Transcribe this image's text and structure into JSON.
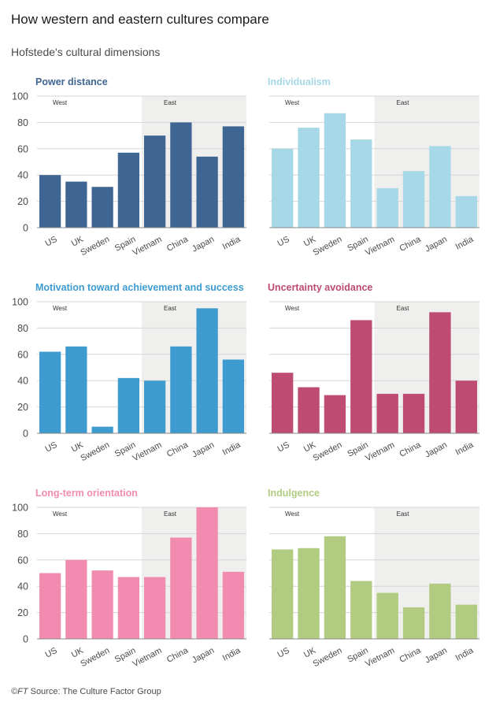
{
  "header": {
    "title": "How western and eastern cultures compare",
    "subtitle": "Hofstede's cultural dimensions"
  },
  "footer": {
    "copyright": "©FT",
    "source": " Source: The Culture Factor Group"
  },
  "chart_data": [
    {
      "type": "bar",
      "title": "Power distance",
      "color": "#3f6593",
      "categories": [
        "US",
        "UK",
        "Sweden",
        "Spain",
        "Vietnam",
        "China",
        "Japan",
        "India"
      ],
      "values": [
        40,
        35,
        31,
        57,
        70,
        80,
        54,
        77
      ],
      "ylim": [
        0,
        100
      ],
      "yticks": [
        0,
        20,
        40,
        60,
        80,
        100
      ],
      "show_ytick_labels": true,
      "region_labels": [
        "West",
        "East"
      ],
      "east_start_category": "Vietnam",
      "grid": true
    },
    {
      "type": "bar",
      "title": "Individualism",
      "color": "#a7d8e8",
      "categories": [
        "US",
        "UK",
        "Sweden",
        "Spain",
        "Vietnam",
        "China",
        "Japan",
        "India"
      ],
      "values": [
        60,
        76,
        87,
        67,
        30,
        43,
        62,
        24
      ],
      "ylim": [
        0,
        100
      ],
      "yticks": [
        0,
        20,
        40,
        60,
        80,
        100
      ],
      "show_ytick_labels": false,
      "region_labels": [
        "West",
        "East"
      ],
      "east_start_category": "Vietnam",
      "grid": true
    },
    {
      "type": "bar",
      "title": "Motivation toward achievement and success",
      "color": "#3d9bd0",
      "categories": [
        "US",
        "UK",
        "Sweden",
        "Spain",
        "Vietnam",
        "China",
        "Japan",
        "India"
      ],
      "values": [
        62,
        66,
        5,
        42,
        40,
        66,
        95,
        56
      ],
      "ylim": [
        0,
        100
      ],
      "yticks": [
        0,
        20,
        40,
        60,
        80,
        100
      ],
      "show_ytick_labels": true,
      "region_labels": [
        "West",
        "East"
      ],
      "east_start_category": "Vietnam",
      "grid": true
    },
    {
      "type": "bar",
      "title": "Uncertainty avoidance",
      "color": "#bd4b72",
      "categories": [
        "US",
        "UK",
        "Sweden",
        "Spain",
        "Vietnam",
        "China",
        "Japan",
        "India"
      ],
      "values": [
        46,
        35,
        29,
        86,
        30,
        30,
        92,
        40
      ],
      "ylim": [
        0,
        100
      ],
      "yticks": [
        0,
        20,
        40,
        60,
        80,
        100
      ],
      "show_ytick_labels": false,
      "region_labels": [
        "West",
        "East"
      ],
      "east_start_category": "Vietnam",
      "grid": true
    },
    {
      "type": "bar",
      "title": "Long-term orientation",
      "color": "#f28bb0",
      "categories": [
        "US",
        "UK",
        "Sweden",
        "Spain",
        "Vietnam",
        "China",
        "Japan",
        "India"
      ],
      "values": [
        50,
        60,
        52,
        47,
        47,
        77,
        100,
        51
      ],
      "ylim": [
        0,
        100
      ],
      "yticks": [
        0,
        20,
        40,
        60,
        80,
        100
      ],
      "show_ytick_labels": true,
      "region_labels": [
        "West",
        "East"
      ],
      "east_start_category": "Vietnam",
      "grid": true
    },
    {
      "type": "bar",
      "title": "Indulgence",
      "color": "#b1cc80",
      "categories": [
        "US",
        "UK",
        "Sweden",
        "Spain",
        "Vietnam",
        "China",
        "Japan",
        "India"
      ],
      "values": [
        68,
        69,
        78,
        44,
        35,
        24,
        42,
        26
      ],
      "ylim": [
        0,
        100
      ],
      "yticks": [
        0,
        20,
        40,
        60,
        80,
        100
      ],
      "show_ytick_labels": false,
      "region_labels": [
        "West",
        "East"
      ],
      "east_start_category": "Vietnam",
      "grid": true
    }
  ]
}
